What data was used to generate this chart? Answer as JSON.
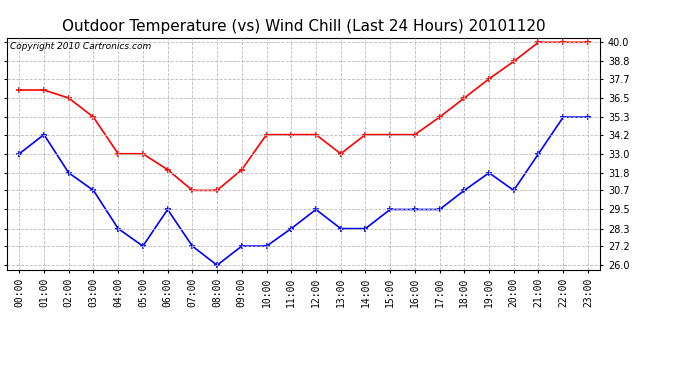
{
  "title": "Outdoor Temperature (vs) Wind Chill (Last 24 Hours) 20101120",
  "copyright": "Copyright 2010 Cartronics.com",
  "hours": [
    "00:00",
    "01:00",
    "02:00",
    "03:00",
    "04:00",
    "05:00",
    "06:00",
    "07:00",
    "08:00",
    "09:00",
    "10:00",
    "11:00",
    "12:00",
    "13:00",
    "14:00",
    "15:00",
    "16:00",
    "17:00",
    "18:00",
    "19:00",
    "20:00",
    "21:00",
    "22:00",
    "23:00"
  ],
  "temp": [
    37.0,
    37.0,
    36.5,
    35.3,
    33.0,
    33.0,
    32.0,
    30.7,
    30.7,
    32.0,
    34.2,
    34.2,
    34.2,
    33.0,
    34.2,
    34.2,
    34.2,
    35.3,
    36.5,
    37.7,
    38.8,
    40.0,
    40.0,
    40.0
  ],
  "wind_chill": [
    33.0,
    34.2,
    31.8,
    30.7,
    28.3,
    27.2,
    29.5,
    27.2,
    26.0,
    27.2,
    27.2,
    28.3,
    29.5,
    28.3,
    28.3,
    29.5,
    29.5,
    29.5,
    30.7,
    31.8,
    30.7,
    33.0,
    35.3,
    35.3
  ],
  "temp_color": "#ff0000",
  "wind_chill_color": "#0000ff",
  "background_color": "#ffffff",
  "grid_color": "#bbbbbb",
  "ylim_min": 26.0,
  "ylim_max": 40.0,
  "yticks": [
    26.0,
    27.2,
    28.3,
    29.5,
    30.7,
    31.8,
    33.0,
    34.2,
    35.3,
    36.5,
    37.7,
    38.8,
    40.0
  ],
  "marker": "+",
  "marker_size": 5,
  "linewidth": 1.2,
  "title_fontsize": 11,
  "tick_fontsize": 7,
  "copyright_fontsize": 6.5
}
